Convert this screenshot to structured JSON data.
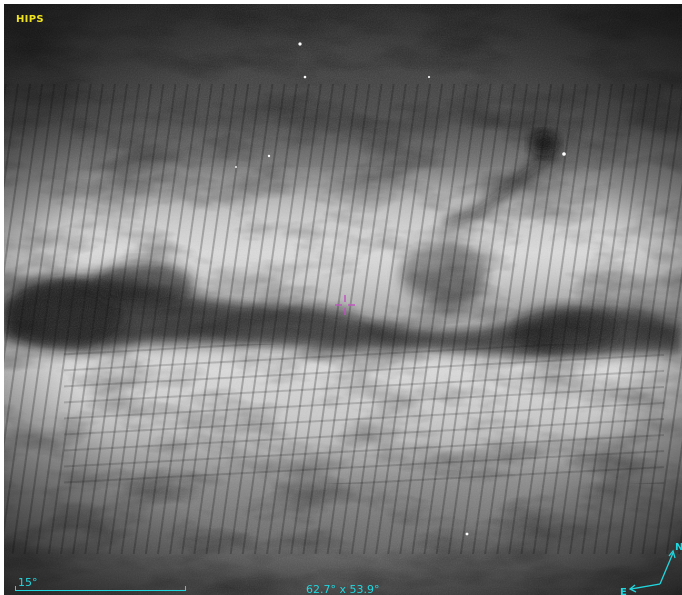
{
  "viewer": {
    "survey_label": "HIPS",
    "scale_label": "15°",
    "fov_label": "62.7° x 53.9°",
    "compass": {
      "north_label": "N",
      "east_label": "E"
    }
  },
  "colors": {
    "survey_label": "#f2e41a",
    "overlay_cyan": "#20d8e0",
    "reticle": "#c050c0"
  },
  "icons": {
    "reticle": "crosshair-icon",
    "compass": "compass-icon"
  }
}
